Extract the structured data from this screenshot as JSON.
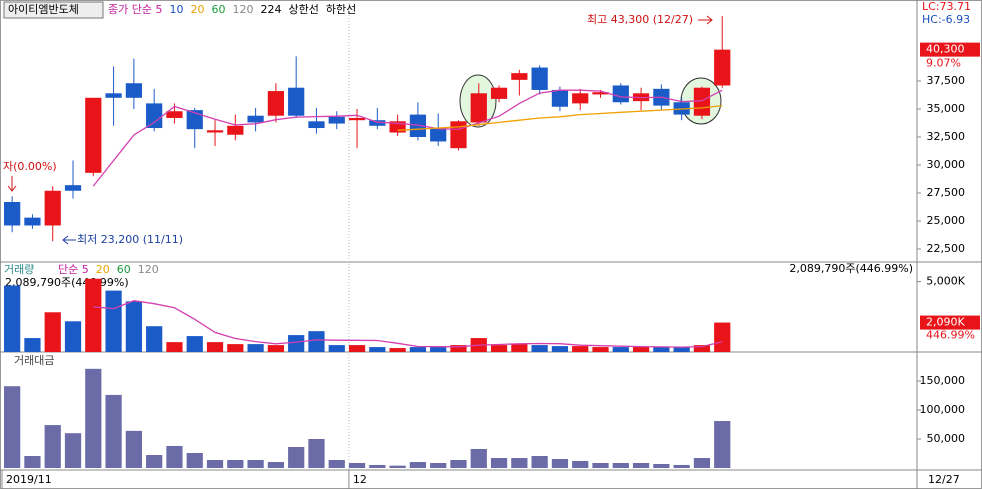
{
  "chart_data": [
    {
      "type": "candlestick",
      "title": "아이티엠반도체",
      "legend": [
        {
          "label": "종가 단순 5",
          "color": "#c0209c"
        },
        {
          "label": "10",
          "color": "#1b4fc0"
        },
        {
          "label": "20",
          "color": "#e8a000"
        },
        {
          "label": "60",
          "color": "#1a9a3a"
        },
        {
          "label": "120",
          "color": "#888888"
        },
        {
          "label": "224",
          "color": "#000000"
        },
        {
          "label": "상한선",
          "color": "#000000"
        },
        {
          "label": "하한선",
          "color": "#000000"
        }
      ],
      "up_color": "#e8141a",
      "down_color": "#1b5bc8",
      "open": [
        26700,
        25300,
        24600,
        28200,
        29300,
        36400,
        37300,
        35500,
        34200,
        34900,
        32900,
        32700,
        34400,
        34400,
        36900,
        33900,
        34300,
        34000,
        34000,
        32900,
        34500,
        33300,
        31500,
        33800,
        35900,
        37600,
        38700,
        36700,
        35500,
        36300,
        37100,
        35700,
        36800,
        35600,
        34400,
        37100
      ],
      "high": [
        27200,
        25600,
        28100,
        30400,
        36000,
        38800,
        39500,
        36800,
        35500,
        35100,
        34000,
        34500,
        35100,
        37300,
        39700,
        35100,
        34800,
        35000,
        35100,
        34500,
        35600,
        34600,
        34000,
        37300,
        37100,
        38500,
        38900,
        37000,
        36800,
        36700,
        37300,
        36900,
        37200,
        36000,
        37000,
        43300
      ],
      "low": [
        24000,
        24300,
        23200,
        27000,
        29000,
        33500,
        35000,
        33000,
        33700,
        31500,
        31700,
        32200,
        33000,
        33800,
        34200,
        32800,
        33200,
        31500,
        33200,
        32600,
        32200,
        31700,
        31300,
        33500,
        35600,
        36200,
        36300,
        34800,
        34900,
        36000,
        35400,
        34900,
        34900,
        34000,
        34100,
        36900
      ],
      "close": [
        24600,
        24600,
        27700,
        27700,
        36000,
        36000,
        36000,
        33300,
        34800,
        33200,
        33100,
        33500,
        33800,
        36600,
        34400,
        33300,
        33700,
        34200,
        33500,
        33900,
        32500,
        32100,
        33900,
        36400,
        36900,
        38200,
        36700,
        35200,
        36400,
        36500,
        35600,
        36400,
        35300,
        34500,
        36900,
        40300
      ],
      "ma_lines": [
        {
          "color": "#d43fb0",
          "values": [
            null,
            null,
            null,
            null,
            28120,
            30400,
            32680,
            33800,
            35220,
            34660,
            34080,
            33580,
            33680,
            34040,
            34280,
            34320,
            34360,
            34440,
            33820,
            33720,
            33560,
            33240,
            33180,
            33760,
            34360,
            35500,
            36420,
            36680,
            36680,
            36600,
            36080,
            36020,
            36040,
            35660,
            35740,
            36680
          ]
        },
        {
          "color": "#f0a000",
          "values": [
            null,
            null,
            null,
            null,
            null,
            null,
            null,
            null,
            null,
            null,
            null,
            null,
            null,
            null,
            null,
            null,
            null,
            null,
            null,
            33100,
            33200,
            33300,
            33400,
            33600,
            33800,
            34000,
            34200,
            34300,
            34500,
            34600,
            34700,
            34800,
            34900,
            35000,
            35100,
            35300
          ]
        }
      ],
      "ylim": [
        21340,
        44730
      ],
      "yticks": [
        {
          "value": 22500,
          "label": "22,500"
        },
        {
          "value": 25000,
          "label": "25,000"
        },
        {
          "value": 27500,
          "label": "27,500"
        },
        {
          "value": 30000,
          "label": "30,000"
        },
        {
          "value": 32500,
          "label": "32,500"
        },
        {
          "value": 35000,
          "label": "35,000"
        },
        {
          "value": 37500,
          "label": "37,500"
        }
      ],
      "xlim": [
        -0.5,
        44.6
      ],
      "xticks": [
        {
          "value": -0.5,
          "label": "2019/11"
        },
        {
          "value": 16.6,
          "label": "12"
        }
      ],
      "last_date_label": "12/27",
      "price_label": "40,300",
      "change_label": "9.07%",
      "lc_label": "LC:73.71",
      "hc_label": "HC:-6.93",
      "high_annotation": "최고 43,300 (12/27)",
      "low_annotation": "최저 23,200 (11/11)",
      "start_annotation": "자(0.00%)"
    },
    {
      "type": "bar",
      "title": "거래량",
      "legend": [
        {
          "label": "단순 5",
          "color": "#c0209c"
        },
        {
          "label": "20",
          "color": "#e8a000"
        },
        {
          "label": "60",
          "color": "#1a9a3a"
        },
        {
          "label": "120",
          "color": "#888888"
        }
      ],
      "values": [
        4720,
        990,
        2820,
        2180,
        5200,
        4360,
        3590,
        1830,
        700,
        1130,
        700,
        560,
        560,
        490,
        1200,
        1480,
        490,
        490,
        350,
        280,
        350,
        350,
        490,
        990,
        490,
        560,
        490,
        420,
        420,
        350,
        350,
        350,
        350,
        350,
        490,
        2090
      ],
      "ma5": {
        "color": "#d43fb0",
        "values": [
          null,
          null,
          null,
          null,
          3210,
          3080,
          3640,
          3430,
          3140,
          2320,
          1390,
          960,
          740,
          580,
          700,
          860,
          840,
          830,
          820,
          620,
          390,
          380,
          370,
          490,
          530,
          580,
          600,
          590,
          480,
          450,
          410,
          380,
          360,
          350,
          380,
          730
        ]
      },
      "ylim": [
        0,
        6390
      ],
      "yticks": [
        {
          "value": 5000,
          "label": "5,000K"
        }
      ],
      "info_label": "2,089,790주(446.99%)",
      "current_label": "2,090K",
      "ratio_label": "446.99%"
    },
    {
      "type": "bar",
      "title": "거래대금",
      "color": "#6b6ba8",
      "values": [
        141000,
        20700,
        74000,
        60000,
        171000,
        126000,
        64000,
        22400,
        38000,
        25900,
        13800,
        13800,
        13800,
        10300,
        36200,
        50000,
        13800,
        8600,
        5200,
        4000,
        10300,
        8600,
        13800,
        32800,
        17200,
        17200,
        20700,
        15500,
        12100,
        8600,
        8600,
        8600,
        6900,
        5200,
        17200,
        81000
      ],
      "ylim": [
        0,
        200000
      ],
      "yticks": [
        {
          "value": 50000,
          "label": "50,000"
        },
        {
          "value": 100000,
          "label": "100,000"
        },
        {
          "value": 150000,
          "label": "150,000"
        }
      ]
    }
  ]
}
